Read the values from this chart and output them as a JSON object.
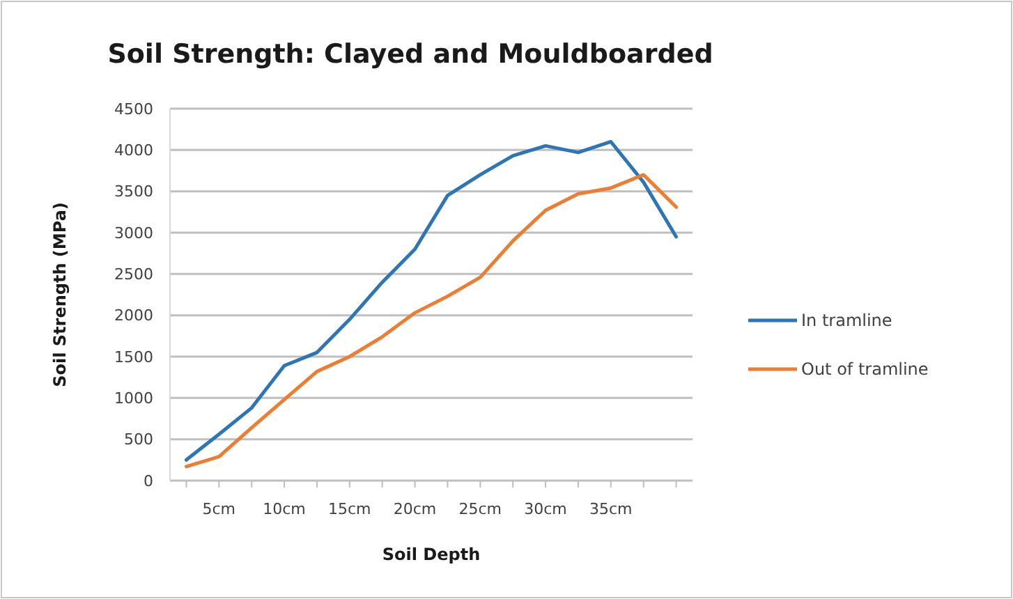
{
  "chart_data": {
    "type": "line",
    "title": "Soil Strength: Clayed and Mouldboarded",
    "xlabel": "Soil Depth",
    "ylabel": "Soil Strength  (MPa)",
    "categories": [
      null,
      "5cm",
      null,
      "10cm",
      null,
      "15cm",
      null,
      "20cm",
      null,
      "25cm",
      null,
      "30cm",
      null,
      "35cm",
      null,
      null
    ],
    "series": [
      {
        "name": "In tramline",
        "color": "#2e75b6",
        "values": [
          250,
          560,
          880,
          1390,
          1550,
          1950,
          2400,
          2800,
          3450,
          3700,
          3930,
          4050,
          3970,
          4100,
          3610,
          2950
        ]
      },
      {
        "name": "Out of tramline",
        "color": "#ed7d31",
        "values": [
          170,
          290,
          640,
          980,
          1320,
          1500,
          1740,
          2030,
          2230,
          2460,
          2900,
          3270,
          3470,
          3540,
          3700,
          3310
        ]
      }
    ],
    "ylim": [
      0,
      4500
    ],
    "yticks": [
      0,
      500,
      1000,
      1500,
      2000,
      2500,
      3000,
      3500,
      4000,
      4500
    ],
    "grid": "y",
    "legend": "right",
    "marker": "none",
    "line_style": "solid"
  }
}
